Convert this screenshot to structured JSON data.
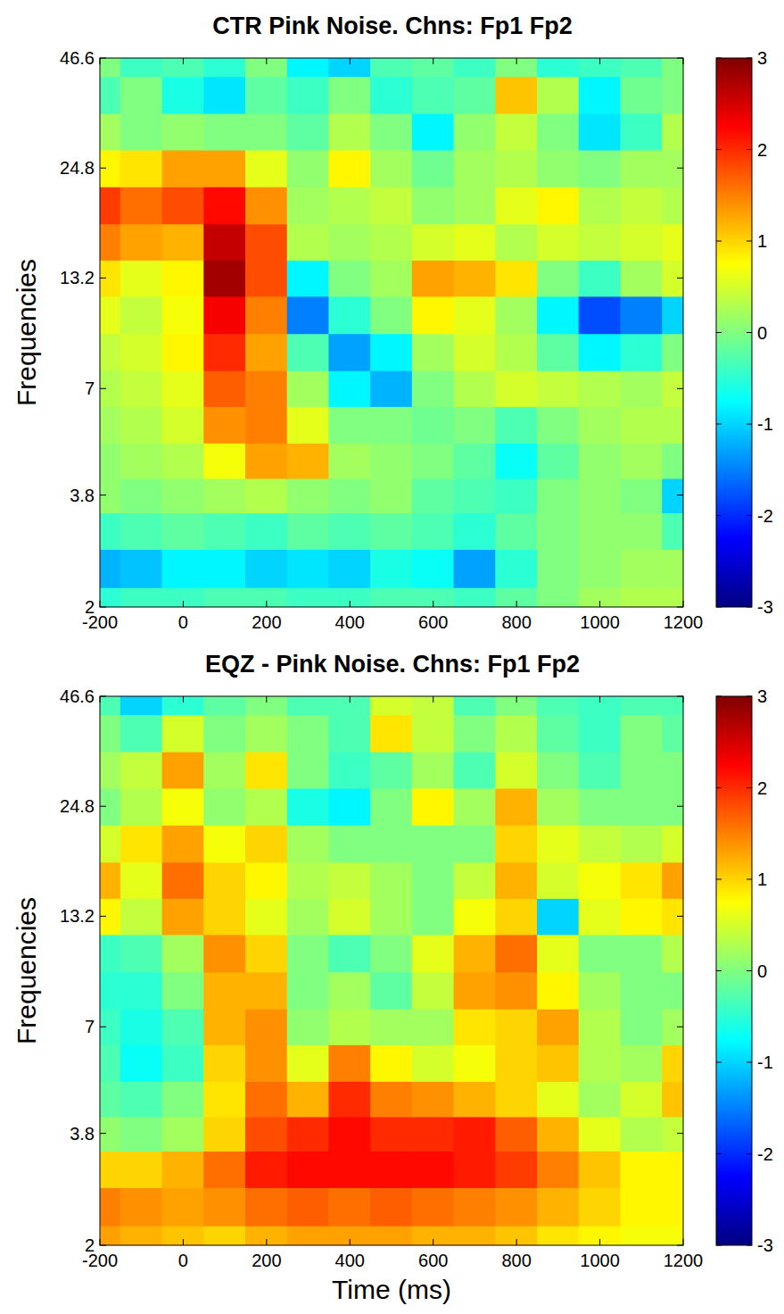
{
  "chart_data": [
    {
      "type": "heatmap",
      "title": "CTR Pink Noise. Chns: Fp1 Fp2",
      "ylabel": "Frequencies",
      "log": "y",
      "x": [
        -200,
        -100,
        0,
        100,
        200,
        300,
        400,
        500,
        600,
        700,
        800,
        900,
        1000,
        1100,
        1200
      ],
      "y": [
        2,
        2.5,
        3.1,
        3.8,
        4.6,
        5.7,
        7,
        8.6,
        10.7,
        13.2,
        16.2,
        20,
        24.8,
        30.5,
        37.7,
        46.6
      ],
      "xlim": [
        -200,
        1200
      ],
      "xticks": [
        -200,
        0,
        200,
        400,
        600,
        800,
        1000,
        1200
      ],
      "ylim": [
        2,
        46.6
      ],
      "yticks": [
        2,
        3.8,
        7,
        13.2,
        24.8,
        46.6
      ],
      "colorbar_lim": [
        -3,
        3
      ],
      "colorbar_ticks": [
        -3,
        -2,
        -1,
        0,
        1,
        2,
        3
      ],
      "values": [
        [
          -0.5,
          -0.4,
          -0.4,
          -0.3,
          -0.3,
          -0.4,
          -0.4,
          -0.3,
          -0.3,
          -0.4,
          -0.2,
          0,
          0.2,
          0.3,
          0.3
        ],
        [
          -1.2,
          -1.1,
          -0.8,
          -0.8,
          -1.0,
          -0.9,
          -1.0,
          -0.6,
          -0.7,
          -1.3,
          -0.5,
          0,
          0.1,
          0.2,
          0.2
        ],
        [
          -0.4,
          -0.3,
          -0.2,
          -0.3,
          -0.4,
          -0.2,
          -0.3,
          -0.2,
          -0.3,
          -0.5,
          -0.2,
          0,
          0.1,
          0.1,
          -0.3
        ],
        [
          0.1,
          0,
          0.1,
          0.2,
          0.3,
          0.1,
          0,
          0.1,
          -0.2,
          -0.3,
          -0.4,
          0,
          0.1,
          0,
          -1.0
        ],
        [
          0.1,
          0.2,
          0.3,
          0.7,
          1.3,
          1.2,
          0.2,
          0.1,
          0,
          -0.2,
          -0.7,
          -0.2,
          0.1,
          0.2,
          0
        ],
        [
          0.2,
          0.3,
          0.5,
          1.4,
          1.5,
          0.6,
          0,
          0,
          -0.1,
          0,
          -0.3,
          0,
          0.2,
          0.3,
          0.3
        ],
        [
          0.3,
          0.4,
          0.6,
          1.7,
          1.5,
          0.2,
          -0.8,
          -1.2,
          0,
          0.3,
          0.5,
          0.4,
          0.3,
          0.2,
          0.4
        ],
        [
          0.4,
          0.5,
          0.8,
          2.0,
          1.3,
          -0.3,
          -1.3,
          -0.8,
          0.2,
          0.5,
          0.3,
          -0.2,
          -0.8,
          -0.5,
          0
        ],
        [
          0.6,
          0.4,
          0.7,
          2.3,
          1.5,
          -1.5,
          -0.5,
          0,
          0.8,
          0.6,
          0.2,
          -0.8,
          -1.8,
          -1.5,
          -1.0
        ],
        [
          0.9,
          0.6,
          0.8,
          2.8,
          1.8,
          -0.8,
          0,
          0.2,
          1.3,
          1.2,
          0.9,
          0,
          -0.4,
          0.2,
          0.5
        ],
        [
          1.5,
          1.3,
          1.2,
          2.6,
          1.8,
          0.3,
          0.2,
          0.3,
          0.5,
          0.6,
          0.3,
          0.5,
          0.4,
          0.5,
          0.6
        ],
        [
          1.9,
          1.6,
          1.8,
          2.2,
          1.4,
          0.2,
          0.3,
          0.4,
          0.1,
          0.2,
          0.6,
          0.8,
          0.3,
          0.4,
          0.3
        ],
        [
          0.8,
          0.9,
          1.3,
          1.3,
          0.6,
          0.1,
          0.8,
          0.2,
          -0.1,
          0.2,
          0.3,
          0.1,
          0,
          0.2,
          0.2
        ],
        [
          0.2,
          0,
          0.1,
          0,
          0,
          -0.2,
          0.3,
          0,
          -0.8,
          0.1,
          0.4,
          0,
          -0.9,
          -0.4,
          0.3
        ],
        [
          -0.3,
          0,
          -0.6,
          -0.9,
          -0.2,
          -0.4,
          0,
          -0.5,
          -0.3,
          -0.2,
          1.1,
          0.3,
          -0.8,
          -0.1,
          0
        ],
        [
          0,
          -0.4,
          -0.3,
          -0.5,
          0,
          -0.8,
          -1.0,
          -0.3,
          -0.2,
          -0.4,
          0,
          -0.5,
          -0.4,
          -0.3,
          0
        ]
      ]
    },
    {
      "type": "heatmap",
      "title": "EQZ - Pink Noise. Chns: Fp1 Fp2",
      "xlabel": "Time (ms)",
      "ylabel": "Frequencies",
      "log": "y",
      "x": [
        -200,
        -100,
        0,
        100,
        200,
        300,
        400,
        500,
        600,
        700,
        800,
        900,
        1000,
        1100,
        1200
      ],
      "y": [
        2,
        2.5,
        3.1,
        3.8,
        4.6,
        5.7,
        7,
        8.6,
        10.7,
        13.2,
        16.2,
        20,
        24.8,
        30.5,
        37.7,
        46.6
      ],
      "xlim": [
        -200,
        1200
      ],
      "xticks": [
        -200,
        0,
        200,
        400,
        600,
        800,
        1000,
        1200
      ],
      "ylim": [
        2,
        46.6
      ],
      "yticks": [
        2,
        3.8,
        7,
        13.2,
        24.8,
        46.6
      ],
      "colorbar_lim": [
        -3,
        3
      ],
      "colorbar_ticks": [
        -3,
        -2,
        -1,
        0,
        1,
        2,
        3
      ],
      "values": [
        [
          1.3,
          1.2,
          1.1,
          1.0,
          1.2,
          1.3,
          1.3,
          1.3,
          1.2,
          1.2,
          1.1,
          0.9,
          0.8,
          0.7,
          0.7
        ],
        [
          1.5,
          1.4,
          1.3,
          1.4,
          1.6,
          1.7,
          1.6,
          1.7,
          1.6,
          1.5,
          1.4,
          1.2,
          1.0,
          0.8,
          0.8
        ],
        [
          1.0,
          1.0,
          1.2,
          1.6,
          2.1,
          2.2,
          2.2,
          2.2,
          2.2,
          2.1,
          1.9,
          1.5,
          1.1,
          0.8,
          0.8
        ],
        [
          0.1,
          0,
          0.2,
          1.0,
          1.8,
          2.0,
          2.2,
          2.0,
          2.0,
          2.1,
          1.7,
          1.2,
          0.6,
          0.3,
          0.4
        ],
        [
          -0.2,
          -0.3,
          0,
          0.9,
          1.6,
          1.2,
          2.0,
          1.5,
          1.4,
          1.2,
          1.0,
          0.6,
          0.2,
          0.5,
          1.1
        ],
        [
          -0.3,
          -0.7,
          -0.4,
          1.0,
          1.4,
          0.6,
          1.5,
          0.8,
          0.5,
          0.7,
          1.0,
          1.1,
          0.3,
          0.2,
          1.0
        ],
        [
          -0.4,
          -0.6,
          -0.3,
          1.2,
          1.4,
          0.1,
          0.3,
          0.2,
          0.2,
          0.9,
          1.0,
          1.3,
          0.3,
          0,
          0.2
        ],
        [
          -0.5,
          -0.5,
          0,
          1.2,
          1.2,
          0,
          0.2,
          -0.2,
          0.4,
          1.3,
          1.4,
          0.8,
          0.2,
          0,
          0
        ],
        [
          -0.4,
          -0.3,
          0.2,
          1.4,
          1.0,
          0,
          -0.3,
          0,
          0.6,
          1.2,
          1.6,
          0.6,
          0,
          0,
          0.3
        ],
        [
          0.8,
          0.4,
          1.3,
          1.0,
          0.6,
          0.2,
          0.5,
          0.2,
          0,
          0.7,
          1.0,
          -1.0,
          0.6,
          0.8,
          0.9
        ],
        [
          1.2,
          0.6,
          1.6,
          1.0,
          0.8,
          0.3,
          0.4,
          0.2,
          0,
          0.4,
          1.2,
          0.5,
          0.7,
          0.9,
          1.3
        ],
        [
          0.5,
          0.9,
          1.3,
          0.7,
          1.0,
          0.2,
          0,
          0,
          0,
          0,
          1.0,
          0.6,
          0.4,
          0.3,
          0.5
        ],
        [
          0,
          0.3,
          0.7,
          0.1,
          0.3,
          -0.6,
          -0.8,
          0,
          0.8,
          0.2,
          1.2,
          0.2,
          0,
          0,
          0
        ],
        [
          0.2,
          0.4,
          1.3,
          0.2,
          0.9,
          0,
          -0.4,
          -0.2,
          0.2,
          -0.3,
          0.5,
          0,
          -0.3,
          0,
          0
        ],
        [
          0,
          -0.3,
          0.5,
          0,
          0.2,
          0,
          -0.3,
          0.9,
          0.4,
          0,
          0.3,
          -0.2,
          -0.4,
          0,
          -0.2
        ],
        [
          -0.3,
          -1.0,
          -0.5,
          -0.2,
          0,
          -0.3,
          -0.3,
          0.5,
          0.4,
          -0.3,
          0,
          -0.3,
          -0.4,
          -0.3,
          -0.3
        ]
      ]
    }
  ]
}
